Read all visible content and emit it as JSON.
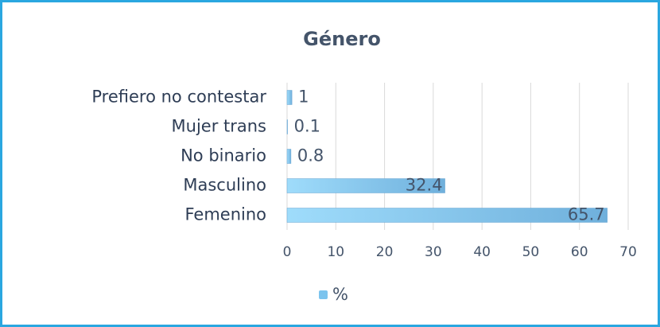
{
  "chart_data": {
    "type": "bar",
    "orientation": "horizontal",
    "title": "Género",
    "categories": [
      "Prefiero no contestar",
      "Mujer trans",
      "No binario",
      "Masculino",
      "Femenino"
    ],
    "series": [
      {
        "name": "%",
        "color": "#7cc4ee",
        "values": [
          1,
          0.1,
          0.8,
          32.4,
          65.7
        ]
      }
    ],
    "xlim": [
      0,
      70
    ],
    "xticks": [
      0,
      10,
      20,
      30,
      40,
      50,
      60,
      70
    ],
    "grid": true,
    "legend": "bottom"
  }
}
